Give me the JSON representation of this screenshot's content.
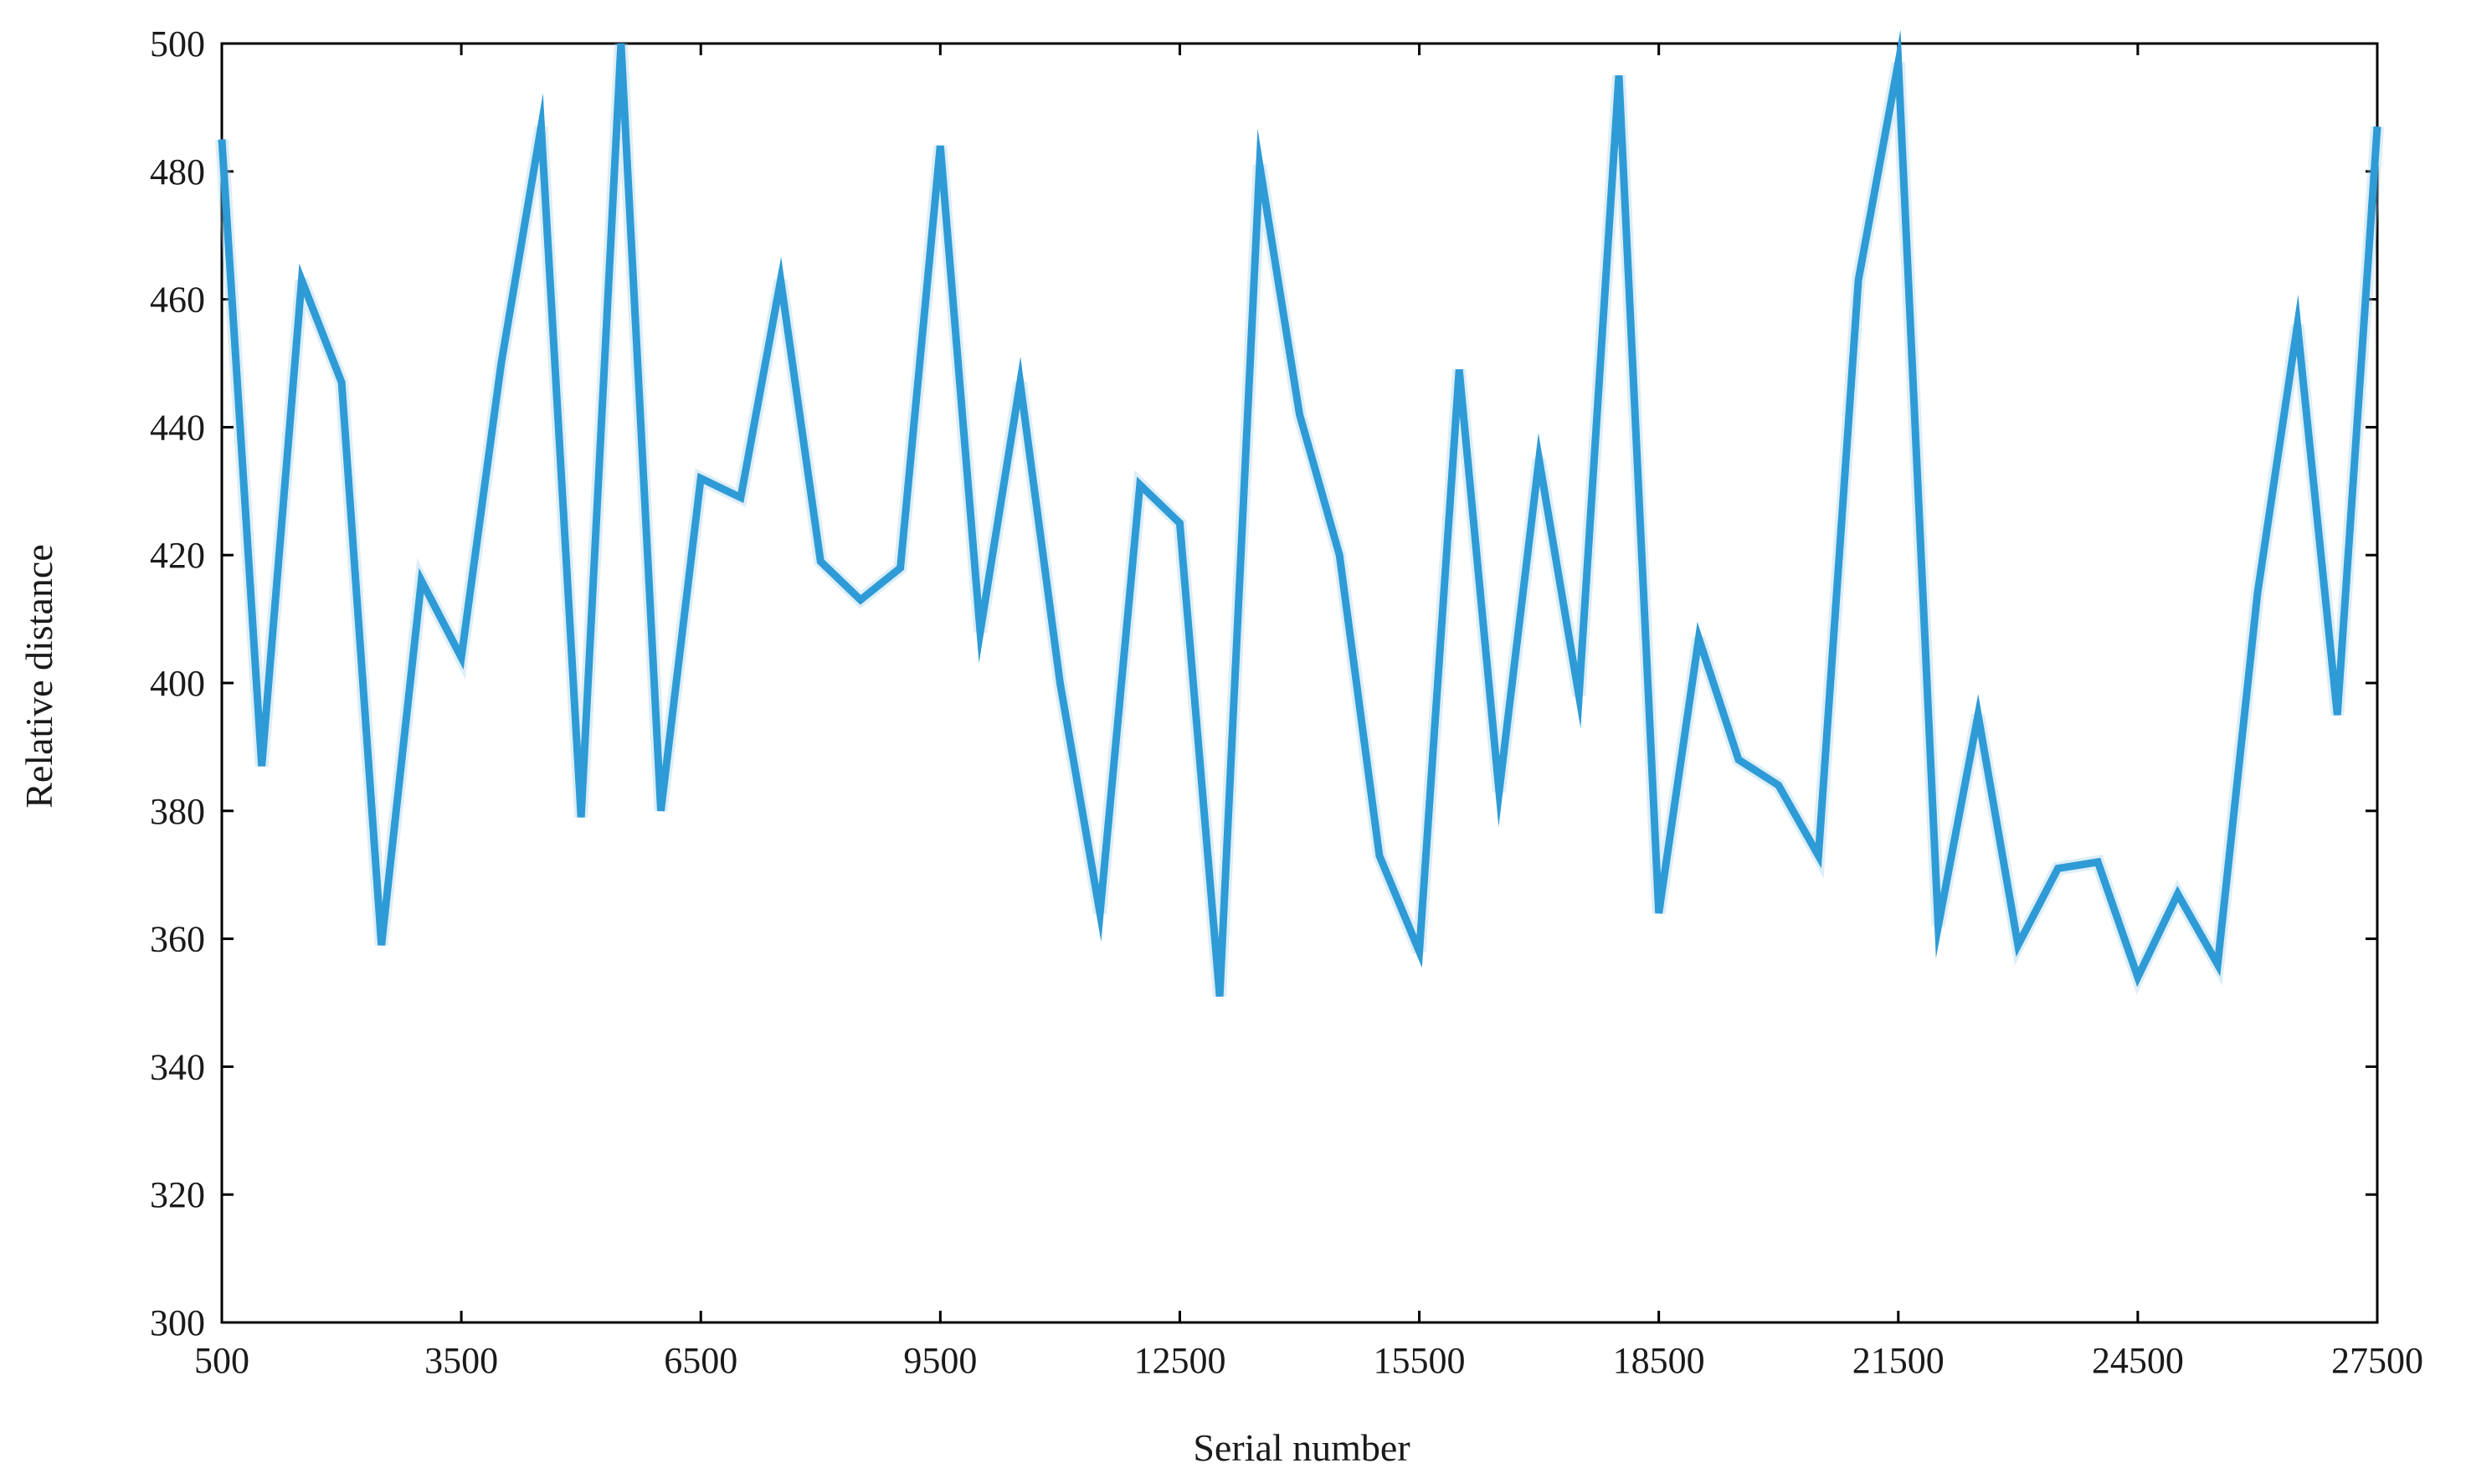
{
  "chart_data": {
    "type": "line",
    "xlabel": "Serial number",
    "ylabel": "Relative distance",
    "xlim": [
      500,
      27500
    ],
    "ylim": [
      300,
      500
    ],
    "xticks": [
      500,
      3500,
      6500,
      9500,
      12500,
      15500,
      18500,
      21500,
      24500,
      27500
    ],
    "yticks": [
      300,
      320,
      340,
      360,
      380,
      400,
      420,
      440,
      460,
      480,
      500
    ],
    "grid": false,
    "line_color": "#2e9bd6",
    "series": [
      {
        "x": [
          500,
          1000,
          1500,
          2000,
          2500,
          3000,
          3500,
          4000,
          4500,
          5000,
          5500,
          6000,
          6500,
          7000,
          7500,
          8000,
          8500,
          9000,
          9500,
          10000,
          10500,
          11000,
          11500,
          12000,
          12500,
          13000,
          13500,
          14000,
          14500,
          15000,
          15500,
          16000,
          16500,
          17000,
          17500,
          18000,
          18500,
          19000,
          19500,
          20000,
          20500,
          21000,
          21500,
          22000,
          22500,
          23000,
          23500,
          24000,
          24500,
          25000,
          25500,
          26000,
          26500,
          27000,
          27500
        ],
        "values": [
          485,
          387,
          463,
          447,
          359,
          416,
          404,
          450,
          487,
          379,
          500,
          380,
          432,
          429,
          463,
          419,
          413,
          418,
          484,
          408,
          447,
          400,
          364,
          431,
          425,
          351,
          481,
          442,
          420,
          373,
          358,
          449,
          383,
          435,
          398,
          495,
          364,
          407,
          388,
          384,
          373,
          463,
          497,
          362,
          395,
          359,
          371,
          372,
          354,
          367,
          356,
          414,
          456,
          395,
          487
        ]
      }
    ]
  }
}
